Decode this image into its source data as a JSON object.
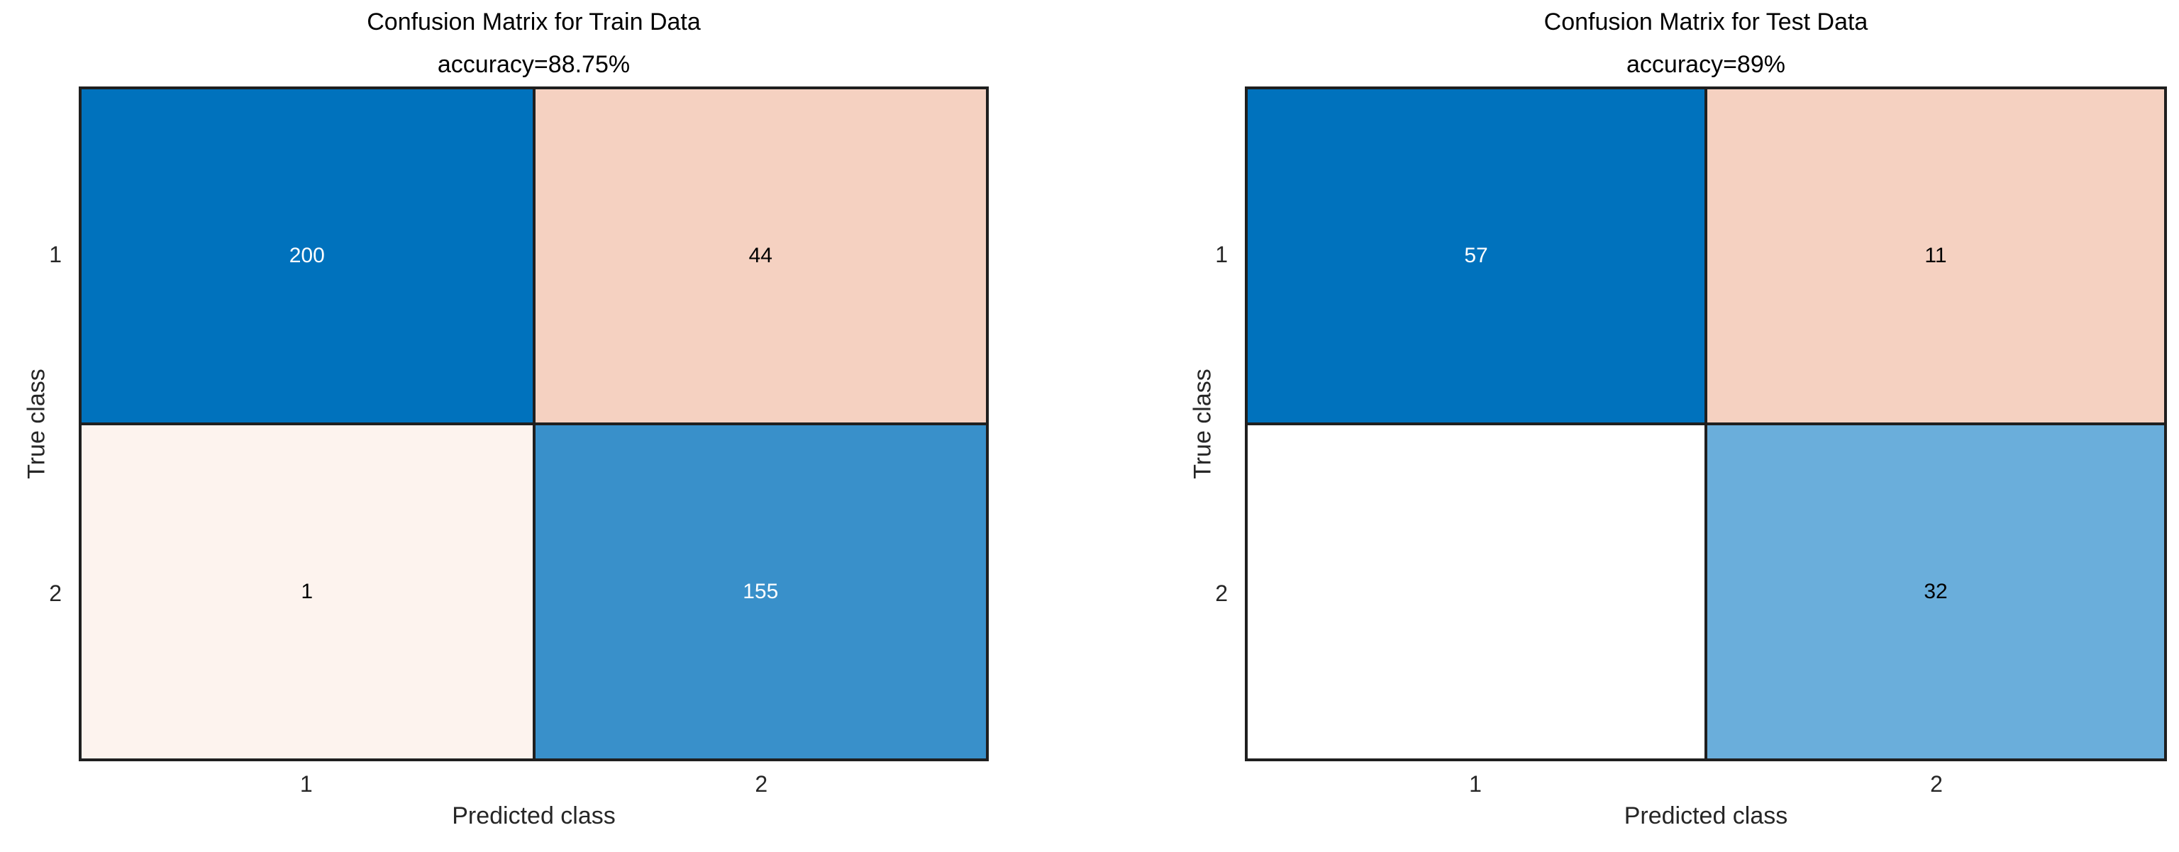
{
  "figure": {
    "background": "#ffffff",
    "grid_line_color": "#1f1f1f",
    "tick_label_color": "#262626"
  },
  "charts": [
    {
      "title": "Confusion Matrix for Train Data",
      "subtitle": "accuracy=88.75%",
      "xlabel": "Predicted class",
      "ylabel": "True class",
      "x_ticks": [
        "1",
        "2"
      ],
      "y_ticks": [
        "1",
        "2"
      ],
      "cells": [
        {
          "value": "200",
          "bg": "#0072bd",
          "fg": "#ffffff"
        },
        {
          "value": "44",
          "bg": "#f5d1c1",
          "fg": "#000000"
        },
        {
          "value": "1",
          "bg": "#fdf3ee",
          "fg": "#000000"
        },
        {
          "value": "155",
          "bg": "#3990ca",
          "fg": "#ffffff"
        }
      ]
    },
    {
      "title": "Confusion Matrix for Test Data",
      "subtitle": "accuracy=89%",
      "xlabel": "Predicted class",
      "ylabel": "True class",
      "x_ticks": [
        "1",
        "2"
      ],
      "y_ticks": [
        "1",
        "2"
      ],
      "cells": [
        {
          "value": "57",
          "bg": "#0072bd",
          "fg": "#ffffff"
        },
        {
          "value": "11",
          "bg": "#f5d1c1",
          "fg": "#000000"
        },
        {
          "value": "",
          "bg": "#ffffff",
          "fg": "#000000"
        },
        {
          "value": "32",
          "bg": "#6aaedb",
          "fg": "#000000"
        }
      ]
    }
  ],
  "chart_data": [
    {
      "type": "heatmap",
      "title": "Confusion Matrix for Train Data",
      "subtitle": "accuracy=88.75%",
      "xlabel": "Predicted class",
      "ylabel": "True class",
      "x_categories": [
        "1",
        "2"
      ],
      "y_categories": [
        "1",
        "2"
      ],
      "matrix": [
        [
          200,
          44
        ],
        [
          1,
          155
        ]
      ],
      "cell_colors": [
        [
          "#0072bd",
          "#f5d1c1"
        ],
        [
          "#fdf3ee",
          "#3990ca"
        ]
      ],
      "grid": true,
      "legend": "none"
    },
    {
      "type": "heatmap",
      "title": "Confusion Matrix for Test Data",
      "subtitle": "accuracy=89%",
      "xlabel": "Predicted class",
      "ylabel": "True class",
      "x_categories": [
        "1",
        "2"
      ],
      "y_categories": [
        "1",
        "2"
      ],
      "matrix": [
        [
          57,
          11
        ],
        [
          0,
          32
        ]
      ],
      "cell_colors": [
        [
          "#0072bd",
          "#f5d1c1"
        ],
        [
          "#ffffff",
          "#6aaedb"
        ]
      ],
      "zero_cell_label_hidden": true,
      "grid": true,
      "legend": "none"
    }
  ]
}
